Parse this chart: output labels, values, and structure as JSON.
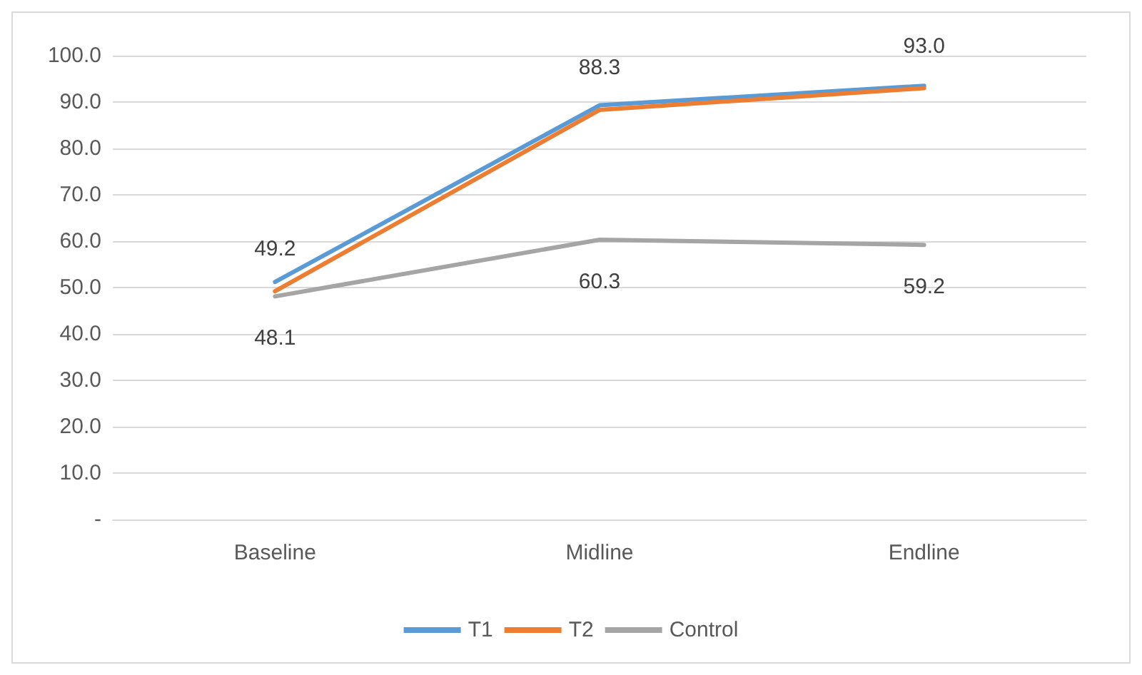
{
  "chart_data": {
    "type": "line",
    "categories": [
      "Baseline",
      "Midline",
      "Endline"
    ],
    "series": [
      {
        "name": "T1",
        "color": "#5b9bd5",
        "values": [
          51.2,
          89.3,
          93.5
        ]
      },
      {
        "name": "T2",
        "color": "#ed7d31",
        "values": [
          49.2,
          88.3,
          93.0
        ],
        "value_labels": [
          "49.2",
          "88.3",
          "93.0"
        ]
      },
      {
        "name": "Control",
        "color": "#a5a5a5",
        "values": [
          48.1,
          60.3,
          59.2
        ],
        "value_labels": [
          "48.1",
          "60.3",
          "59.2"
        ]
      }
    ],
    "ylim": [
      0,
      100
    ],
    "yticks": [
      {
        "value": 0,
        "label": "-"
      },
      {
        "value": 10,
        "label": "10.0"
      },
      {
        "value": 20,
        "label": "20.0"
      },
      {
        "value": 30,
        "label": "30.0"
      },
      {
        "value": 40,
        "label": "40.0"
      },
      {
        "value": 50,
        "label": "50.0"
      },
      {
        "value": 60,
        "label": "60.0"
      },
      {
        "value": 70,
        "label": "70.0"
      },
      {
        "value": 80,
        "label": "80.0"
      },
      {
        "value": 90,
        "label": "90.0"
      },
      {
        "value": 100,
        "label": "100.0"
      }
    ],
    "grid": "y",
    "legend": "bottom",
    "marker": "none",
    "line_style": "solid"
  }
}
